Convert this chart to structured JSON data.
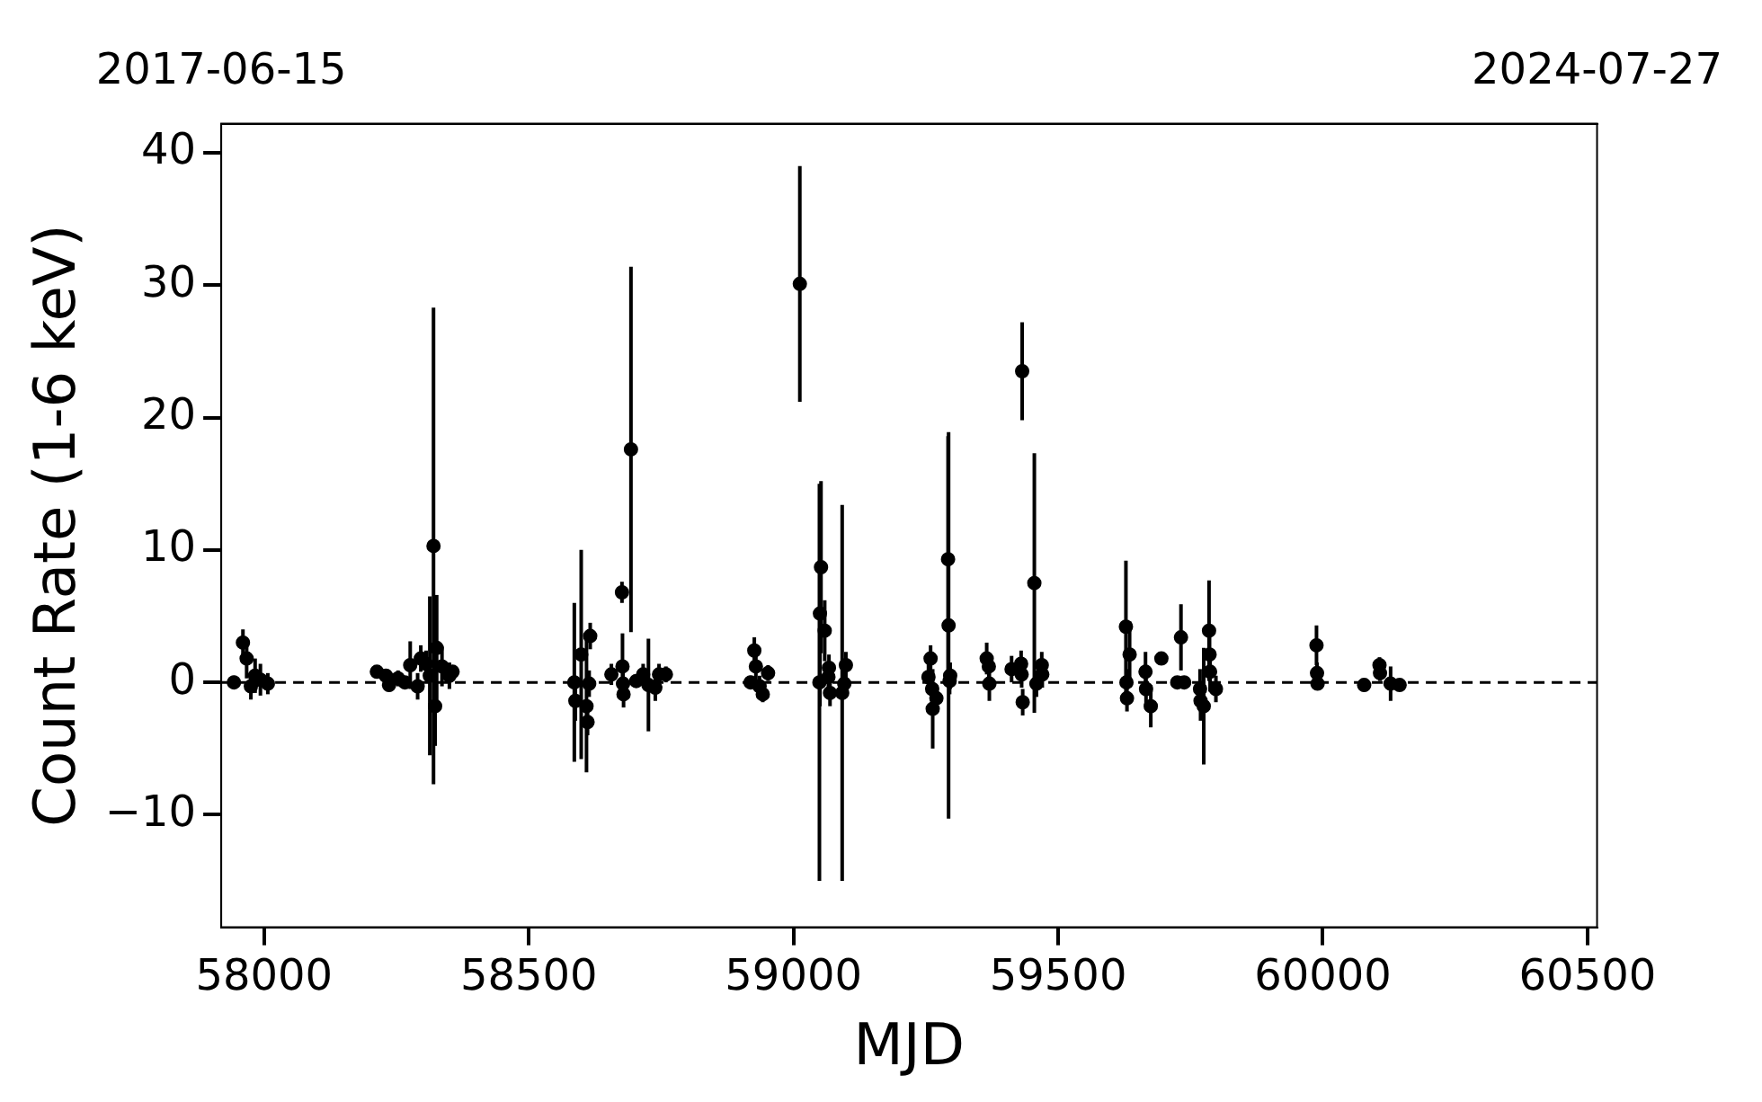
{
  "chart_data": {
    "type": "scatter",
    "xlabel": "MJD",
    "ylabel": "Count Rate (1-6 keV)",
    "xlim": [
      57919,
      60518
    ],
    "xticks": [
      58000,
      58500,
      59000,
      59500,
      60000,
      60500
    ],
    "x2lim": [
      "2017-06-15",
      "2024-07-27"
    ],
    "x2ticks": [
      "2017-06-15",
      "2024-07-27"
    ],
    "ylim": [
      -18.5,
      42.2
    ],
    "yticks": [
      {
        "value": -10,
        "label": "−10"
      },
      0,
      10,
      20,
      30,
      40
    ],
    "marker": "circle",
    "legend": false,
    "ref_lines": [
      {
        "axis": "y",
        "value": 0,
        "color": "#000000",
        "line_style": "dashed"
      }
    ],
    "series": [
      {
        "color": "#000000",
        "x": [
          57943,
          57960,
          57967,
          57975,
          57983,
          57993,
          58007,
          58213,
          58230,
          58236,
          58253,
          58266,
          58276,
          58290,
          58296,
          58306,
          58313,
          58320,
          58323,
          58326,
          58336,
          58350,
          58356,
          58586,
          58588,
          58599,
          58609,
          58611,
          58614,
          58616,
          58656,
          58676,
          58677,
          58678,
          58679,
          58693,
          58703,
          58716,
          58726,
          58739,
          58746,
          58759,
          58919,
          58926,
          58929,
          58936,
          58942,
          58952,
          59012,
          59049,
          59050,
          59052,
          59059,
          59066,
          59067,
          59069,
          59092,
          59096,
          59099,
          59255,
          59259,
          59262,
          59263,
          59270,
          59292,
          59293,
          59295,
          59296,
          59365,
          59369,
          59370,
          59412,
          59430,
          59431,
          59432,
          59433,
          59455,
          59459,
          59469,
          59470,
          59628,
          59629,
          59630,
          59635,
          59665,
          59666,
          59675,
          59695,
          59725,
          59732,
          59738,
          59768,
          59769,
          59775,
          59785,
          59786,
          59787,
          59798,
          59988,
          59989,
          59990,
          60078,
          60107,
          60108,
          60128,
          60145
        ],
        "values": [
          0,
          3.0,
          1.8,
          -0.3,
          0.5,
          0.2,
          -0.1,
          0.8,
          0.5,
          -0.2,
          0.3,
          0,
          1.3,
          -0.3,
          1.8,
          1.4,
          0.5,
          10.3,
          -1.8,
          2.6,
          1.2,
          0.5,
          0.8,
          0,
          -1.4,
          2.1,
          -1.8,
          -3.0,
          -0.1,
          3.5,
          0.6,
          6.8,
          1.2,
          -0.1,
          -0.9,
          17.6,
          0.1,
          0.6,
          -0.2,
          -0.4,
          0.6,
          0.6,
          0,
          2.4,
          1.2,
          -0.3,
          -0.9,
          0.7,
          30.1,
          0,
          5.2,
          8.7,
          3.9,
          0.4,
          1.1,
          -0.8,
          -0.8,
          -0.1,
          1.3,
          0.4,
          1.8,
          -0.5,
          -2.0,
          -1.2,
          9.3,
          4.3,
          0.1,
          0.5,
          1.8,
          1.2,
          -0.1,
          1.0,
          1.4,
          0.6,
          23.5,
          -1.5,
          7.5,
          -0.1,
          1.3,
          0.6,
          4.2,
          0,
          -1.2,
          2.1,
          0.8,
          -0.5,
          -1.8,
          1.8,
          0,
          3.4,
          0,
          -0.5,
          -1.4,
          -1.8,
          3.9,
          2.1,
          0.8,
          -0.5,
          2.8,
          0.7,
          -0.1,
          -0.2,
          1.3,
          0.7,
          -0.1,
          -0.2
        ],
        "errors": [
          0.5,
          1.0,
          1.5,
          1.0,
          1.3,
          1.2,
          0.8,
          0.3,
          0.5,
          0.5,
          0.6,
          0.4,
          1.8,
          1.0,
          1.0,
          1.0,
          6,
          18,
          3,
          4,
          1.5,
          1,
          0.5,
          6,
          1.5,
          7.9,
          5,
          1,
          1,
          1,
          0.8,
          0.8,
          2.5,
          1,
          1,
          13.8,
          0.5,
          0.8,
          3.5,
          1,
          0.8,
          0.6,
          0.5,
          1,
          1,
          0.8,
          0.6,
          0.6,
          8.9,
          15,
          7,
          6.5,
          2.3,
          1,
          1,
          1,
          14.2,
          1,
          1,
          1,
          1,
          1,
          3,
          1,
          9.3,
          14.6,
          1,
          1,
          1.2,
          1,
          1.3,
          1,
          1,
          1,
          3.7,
          1,
          9.8,
          1,
          1,
          1,
          5,
          1,
          1,
          2.5,
          1.5,
          1.5,
          1.6,
          0.5,
          0.3,
          2.5,
          0.3,
          1.5,
          1.5,
          4.4,
          3.8,
          1.5,
          1.5,
          1,
          1.5,
          0.8,
          0.5,
          0.5,
          0.6,
          0.6,
          1.3,
          0.3
        ]
      }
    ]
  }
}
